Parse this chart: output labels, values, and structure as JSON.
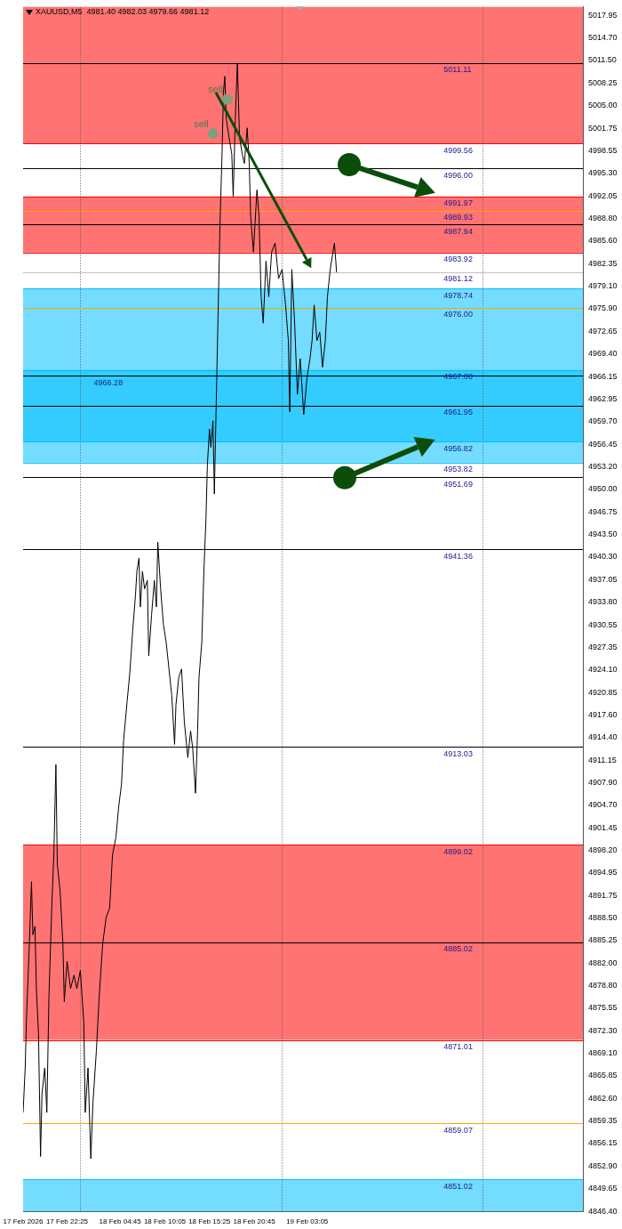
{
  "chart_data": {
    "type": "line",
    "title": "XAUUSD,M5  4981.40 4982.03 4979.66 4981.12",
    "x": [
      "2026-02-17T17:10",
      "2026-02-17T17:25",
      "2026-02-17T17:35",
      "2026-02-17T17:55",
      "2026-02-17T18:10",
      "2026-02-17T18:20",
      "2026-02-17T18:35",
      "2026-02-17T18:45",
      "2026-02-17T19:00",
      "2026-02-17T19:15",
      "2026-02-17T19:25",
      "2026-02-17T19:45",
      "2026-02-17T20:00",
      "2026-02-17T20:15",
      "2026-02-17T20:35",
      "2026-02-17T20:50",
      "2026-02-17T21:05",
      "2026-02-17T21:15",
      "2026-02-17T21:35",
      "2026-02-17T21:55",
      "2026-02-17T22:05",
      "2026-02-17T22:25",
      "2026-02-17T22:50",
      "2026-02-17T23:15",
      "2026-02-17T23:35",
      "2026-02-18T00:00",
      "2026-02-18T00:25",
      "2026-02-18T00:35",
      "2026-02-18T00:55",
      "2026-02-18T01:15",
      "2026-02-18T01:30",
      "2026-02-18T01:55",
      "2026-02-18T02:15",
      "2026-02-18T02:40",
      "2026-02-18T03:05",
      "2026-02-18T03:30",
      "2026-02-18T03:50",
      "2026-02-18T04:15",
      "2026-02-18T04:35",
      "2026-02-18T04:55",
      "2026-02-18T05:10",
      "2026-02-18T05:35",
      "2026-02-18T05:55",
      "2026-02-18T06:15",
      "2026-02-18T06:35",
      "2026-02-18T06:45",
      "2026-02-18T07:00",
      "2026-02-18T07:10",
      "2026-02-18T07:25",
      "2026-02-18T07:40",
      "2026-02-18T08:00",
      "2026-02-18T08:10",
      "2026-02-18T08:30",
      "2026-02-18T08:50",
      "2026-02-18T09:05",
      "2026-02-18T09:15",
      "2026-02-18T09:35",
      "2026-02-18T09:55",
      "2026-02-18T10:15",
      "2026-02-18T10:35",
      "2026-02-18T10:55",
      "2026-02-18T11:15",
      "2026-02-18T11:25",
      "2026-02-18T11:45",
      "2026-02-18T12:05",
      "2026-02-18T12:25",
      "2026-02-18T12:50",
      "2026-02-18T13:10",
      "2026-02-18T13:25",
      "2026-02-18T13:45",
      "2026-02-18T14:00",
      "2026-02-18T14:10",
      "2026-02-18T14:30",
      "2026-02-18T14:45",
      "2026-02-18T15:00",
      "2026-02-18T15:10",
      "2026-02-18T15:25",
      "2026-02-18T15:35",
      "2026-02-18T15:50",
      "2026-02-18T16:00",
      "2026-02-18T16:20",
      "2026-02-18T16:40",
      "2026-02-18T16:55",
      "2026-02-18T17:05",
      "2026-02-18T17:15",
      "2026-02-18T17:25",
      "2026-02-18T17:45",
      "2026-02-18T18:05",
      "2026-02-18T18:15",
      "2026-02-18T18:30",
      "2026-02-18T18:45",
      "2026-02-18T19:00",
      "2026-02-18T19:20",
      "2026-02-18T19:35",
      "2026-02-18T19:55",
      "2026-02-18T20:10",
      "2026-02-18T20:20",
      "2026-02-18T20:40",
      "2026-02-18T21:05",
      "2026-02-18T21:20",
      "2026-02-18T21:35",
      "2026-02-18T21:50",
      "2026-02-18T22:10",
      "2026-02-18T22:30",
      "2026-02-18T22:50",
      "2026-02-18T23:15",
      "2026-02-18T23:40",
      "2026-02-19T00:05",
      "2026-02-19T00:30",
      "2026-02-19T00:50",
      "2026-02-19T01:00",
      "2026-02-19T01:15",
      "2026-02-19T01:35",
      "2026-02-19T01:55",
      "2026-02-19T02:15",
      "2026-02-19T02:40",
      "2026-02-19T03:05",
      "2026-02-19T03:25",
      "2026-02-19T03:40",
      "2026-02-19T03:55",
      "2026-02-19T04:15",
      "2026-02-19T04:35",
      "2026-02-19T04:55",
      "2026-02-19T05:15",
      "2026-02-19T05:30",
      "2026-02-19T05:50",
      "2026-02-19T06:05",
      "2026-02-19T06:20",
      "2026-02-19T06:30",
      "2026-02-19T06:35"
    ],
    "series": [
      {
        "color": "#000000",
        "values": [
          4860.6,
          4867.0,
          4874.6,
          4884.8,
          4893.7,
          4886.1,
          4887.3,
          4878.4,
          4872.1,
          4854.3,
          4863.2,
          4867.0,
          4860.6,
          4877.2,
          4889.9,
          4897.5,
          4910.5,
          4896.2,
          4892.4,
          4884.8,
          4876.5,
          4882.3,
          4878.4,
          4880.3,
          4878.4,
          4881.0,
          4873.4,
          4860.6,
          4867.0,
          4854.0,
          4861.9,
          4869.5,
          4877.2,
          4884.8,
          4888.6,
          4889.9,
          4897.5,
          4900.1,
          4904.5,
          4907.7,
          4914.0,
          4919.5,
          4923.8,
          4929.7,
          4934.8,
          4938.2,
          4940.1,
          4933.1,
          4938.2,
          4935.7,
          4936.9,
          4926.1,
          4931.9,
          4936.9,
          4933.1,
          4942.4,
          4935.7,
          4930.6,
          4928.0,
          4924.2,
          4920.4,
          4913.4,
          4919.1,
          4923.0,
          4924.2,
          4916.6,
          4911.5,
          4915.3,
          4912.8,
          4906.4,
          4915.3,
          4923.0,
          4928.0,
          4938.2,
          4945.8,
          4953.5,
          4958.6,
          4956.0,
          4959.8,
          4949.3,
          4968.7,
          4987.8,
          4998.0,
          5006.9,
          5009.2,
          5003.1,
          5000.5,
          4998.0,
          4992.0,
          5003.1,
          5011.1,
          5000.5,
          4998.0,
          4996.7,
          5001.8,
          4996.7,
          4989.1,
          4984.0,
          4992.9,
          4989.1,
          4977.6,
          4973.8,
          4982.7,
          4977.6,
          4984.0,
          4985.3,
          4980.2,
          4981.5,
          4976.4,
          4971.3,
          4961.1,
          4981.5,
          4973.8,
          4963.6,
          4968.7,
          4960.7,
          4966.2,
          4968.7,
          4971.3,
          4976.4,
          4971.3,
          4972.5,
          4967.5,
          4971.3,
          4977.6,
          4981.5,
          4983.4,
          4985.3,
          4982.7,
          4981.1
        ]
      }
    ],
    "xlim": [
      "2026-02-17T17:10",
      "2026-02-20T12:00"
    ],
    "xticks": [
      {
        "value": "2026-02-17T17:10",
        "label": "17 Feb 2026"
      },
      {
        "value": "2026-02-17T22:25",
        "label": "17 Feb 22:25"
      },
      {
        "value": "2026-02-18T04:45",
        "label": "18 Feb 04:45"
      },
      {
        "value": "2026-02-18T10:05",
        "label": "18 Feb 10:05"
      },
      {
        "value": "2026-02-18T15:25",
        "label": "18 Feb 15:25"
      },
      {
        "value": "2026-02-18T20:45",
        "label": "18 Feb 20:45"
      },
      {
        "value": "2026-02-19T03:05",
        "label": "19 Feb 03:05"
      }
    ],
    "ylim": [
      4846.4,
      5019.2
    ],
    "yticks": [
      {
        "value": 5017.95,
        "label": "5017.95"
      },
      {
        "value": 5014.7,
        "label": "5014.70"
      },
      {
        "value": 5011.5,
        "label": "5011.50"
      },
      {
        "value": 5008.25,
        "label": "5008.25"
      },
      {
        "value": 5005,
        "label": "5005.00"
      },
      {
        "value": 5001.75,
        "label": "5001.75"
      },
      {
        "value": 4998.55,
        "label": "4998.55"
      },
      {
        "value": 4995.3,
        "label": "4995.30"
      },
      {
        "value": 4992.05,
        "label": "4992.05"
      },
      {
        "value": 4988.8,
        "label": "4988.80"
      },
      {
        "value": 4985.6,
        "label": "4985.60"
      },
      {
        "value": 4982.35,
        "label": "4982.35"
      },
      {
        "value": 4979.1,
        "label": "4979.10"
      },
      {
        "value": 4975.9,
        "label": "4975.90"
      },
      {
        "value": 4972.65,
        "label": "4972.65"
      },
      {
        "value": 4969.4,
        "label": "4969.40"
      },
      {
        "value": 4966.15,
        "label": "4966.15"
      },
      {
        "value": 4962.95,
        "label": "4962.95"
      },
      {
        "value": 4959.7,
        "label": "4959.70"
      },
      {
        "value": 4956.45,
        "label": "4956.45"
      },
      {
        "value": 4953.2,
        "label": "4953.20"
      },
      {
        "value": 4950,
        "label": "4950.00"
      },
      {
        "value": 4946.75,
        "label": "4946.75"
      },
      {
        "value": 4943.5,
        "label": "4943.50"
      },
      {
        "value": 4940.3,
        "label": "4940.30"
      },
      {
        "value": 4937.05,
        "label": "4937.05"
      },
      {
        "value": 4933.8,
        "label": "4933.80"
      },
      {
        "value": 4930.55,
        "label": "4930.55"
      },
      {
        "value": 4927.35,
        "label": "4927.35"
      },
      {
        "value": 4924.1,
        "label": "4924.10"
      },
      {
        "value": 4920.85,
        "label": "4920.85"
      },
      {
        "value": 4917.6,
        "label": "4917.60"
      },
      {
        "value": 4914.4,
        "label": "4914.40"
      },
      {
        "value": 4911.15,
        "label": "4911.15"
      },
      {
        "value": 4907.9,
        "label": "4907.90"
      },
      {
        "value": 4904.7,
        "label": "4904.70"
      },
      {
        "value": 4901.45,
        "label": "4901.45"
      },
      {
        "value": 4898.2,
        "label": "4898.20"
      },
      {
        "value": 4894.95,
        "label": "4894.95"
      },
      {
        "value": 4891.75,
        "label": "4891.75"
      },
      {
        "value": 4888.5,
        "label": "4888.50"
      },
      {
        "value": 4885.25,
        "label": "4885.25"
      },
      {
        "value": 4882,
        "label": "4882.00"
      },
      {
        "value": 4878.8,
        "label": "4878.80"
      },
      {
        "value": 4875.55,
        "label": "4875.55"
      },
      {
        "value": 4872.3,
        "label": "4872.30"
      },
      {
        "value": 4869.1,
        "label": "4869.10"
      },
      {
        "value": 4865.85,
        "label": "4865.85"
      },
      {
        "value": 4862.6,
        "label": "4862.60"
      },
      {
        "value": 4859.35,
        "label": "4859.35"
      },
      {
        "value": 4856.15,
        "label": "4856.15"
      },
      {
        "value": 4852.9,
        "label": "4852.90"
      },
      {
        "value": 4849.65,
        "label": "4849.65"
      },
      {
        "value": 4846.4,
        "label": "4846.40"
      }
    ],
    "grid": false,
    "legend": false,
    "marker": "none",
    "line_style": "solid",
    "bands": [
      {
        "axis": "y",
        "from": 4999.56,
        "to": 5019.2,
        "color": "#ff0000"
      },
      {
        "axis": "y",
        "from": 4983.92,
        "to": 4991.97,
        "color": "#ff0000"
      },
      {
        "axis": "y",
        "from": 4953.82,
        "to": 4978.74,
        "color": "#00bfff"
      },
      {
        "axis": "y",
        "from": 4956.82,
        "to": 4967.08,
        "color": "#00bfff"
      },
      {
        "axis": "y",
        "from": 4871.01,
        "to": 4899.02,
        "color": "#ff0000"
      },
      {
        "axis": "y",
        "from": 4846.4,
        "to": 4851.02,
        "color": "#00bfff"
      }
    ],
    "ref_lines": [
      {
        "axis": "x",
        "value": "2026-02-18T00:00",
        "color": "#555555",
        "line_style": "dotted"
      },
      {
        "axis": "x",
        "value": "2026-02-19T00:00",
        "color": "#555555",
        "line_style": "dotted"
      },
      {
        "axis": "x",
        "value": "2026-02-20T00:00",
        "color": "#555555",
        "line_style": "dotted"
      },
      {
        "axis": "y",
        "value": 5011.11,
        "label": "5011.11",
        "color": "#000000"
      },
      {
        "axis": "y",
        "value": 4999.56,
        "label": "4999.56",
        "color": "#ff0000"
      },
      {
        "axis": "y",
        "value": 4996,
        "label": "4996.00",
        "color": "#000000"
      },
      {
        "axis": "y",
        "value": 4991.97,
        "label": "4991.97",
        "color": "#ff0000"
      },
      {
        "axis": "y",
        "value": 4989.93,
        "label": "4989.93",
        "color": "#ffa500"
      },
      {
        "axis": "y",
        "value": 4987.94,
        "label": "4987.94",
        "color": "#000000"
      },
      {
        "axis": "y",
        "value": 4983.92,
        "label": "4983.92",
        "color": "#ff0000"
      },
      {
        "axis": "y",
        "value": 4981.12,
        "label": "4981.12",
        "color": "#c0c0c0"
      },
      {
        "axis": "y",
        "value": 4978.74,
        "label": "4978.74",
        "color": "#00bfff"
      },
      {
        "axis": "y",
        "value": 4976,
        "label": "4976.00",
        "color": "#ffa500"
      },
      {
        "axis": "y",
        "value": 4967.08,
        "label": "4967.08",
        "color": "#00bfff"
      },
      {
        "axis": "y",
        "value": 4966.28,
        "label": "4966.28",
        "color": "#000000"
      },
      {
        "axis": "y",
        "value": 4961.95,
        "label": "4961.95",
        "color": "#000000"
      },
      {
        "axis": "y",
        "value": 4956.82,
        "label": "4956.82",
        "color": "#00bfff"
      },
      {
        "axis": "y",
        "value": 4953.82,
        "label": "4953.82",
        "color": "#00bfff"
      },
      {
        "axis": "y",
        "value": 4951.69,
        "label": "4951.69",
        "color": "#000000"
      },
      {
        "axis": "y",
        "value": 4941.36,
        "label": "4941.36",
        "color": "#000000"
      },
      {
        "axis": "y",
        "value": 4913.03,
        "label": "4913.03",
        "color": "#000000"
      },
      {
        "axis": "y",
        "value": 4899.02,
        "label": "4899.02",
        "color": "#ff0000"
      },
      {
        "axis": "y",
        "value": 4885.02,
        "label": "4885.02",
        "color": "#000000"
      },
      {
        "axis": "y",
        "value": 4871.01,
        "label": "4871.01",
        "color": "#ff0000"
      },
      {
        "axis": "y",
        "value": 4859.07,
        "label": "4859.07",
        "color": "#ffa500"
      },
      {
        "axis": "y",
        "value": 4851.02,
        "label": "4851.02",
        "color": "#00bfff"
      }
    ],
    "annotations": [
      {
        "text": "sell",
        "x": "2026-02-18T17:33",
        "y": 5005.9
      },
      {
        "text": "sell",
        "x": "2026-02-18T15:50",
        "y": 5001.0
      }
    ]
  }
}
